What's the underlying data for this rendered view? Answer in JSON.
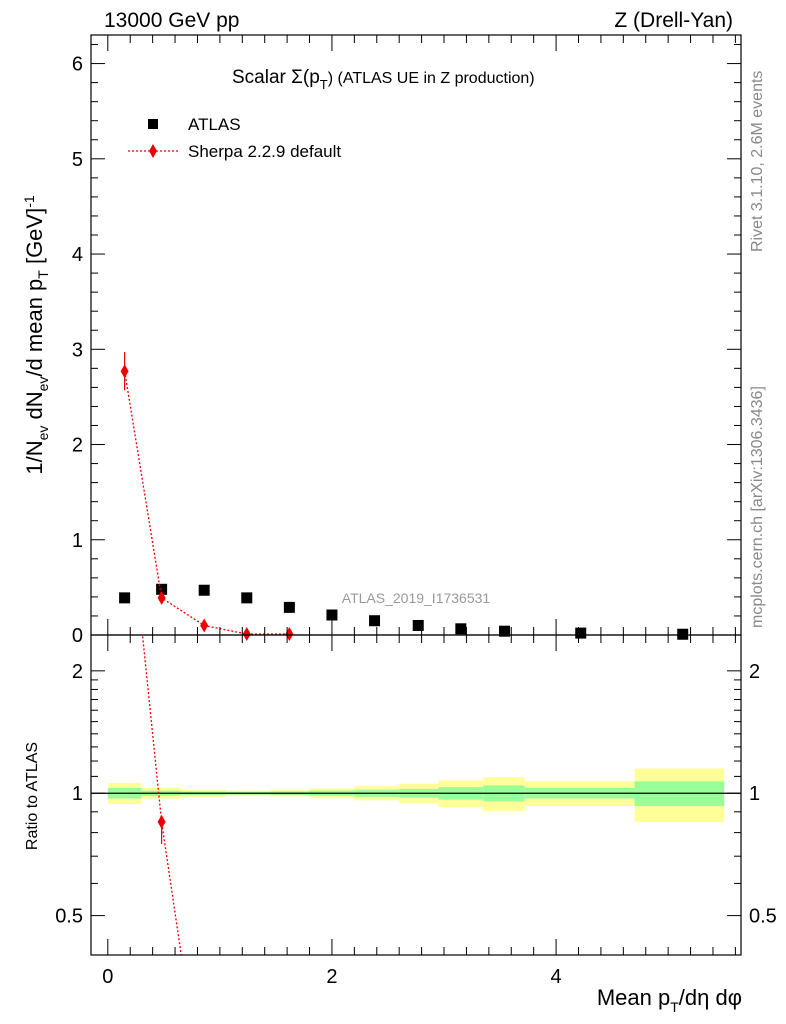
{
  "header": {
    "left": "13000 GeV pp",
    "right": "Z (Drell-Yan)"
  },
  "side": {
    "rivet": "Rivet 3.1.10,  2.6M events",
    "mcplots": "mcplots.cern.ch [arXiv:1306.3436]"
  },
  "chart_data": {
    "type": "scatter",
    "title": "Scalar Σ(p_T) (ATLAS UE in Z production)",
    "title_parts": {
      "main": "Scalar Σ(p",
      "sub": "T",
      "tail": ") (ATLAS UE in Z production)"
    },
    "analysis_label": "ATLAS_2019_I1736531",
    "xlabel": "Mean p_T/dη dφ",
    "xlabel_parts": {
      "main": "Mean p",
      "sub": "T",
      "tail": "/dη dφ"
    },
    "ylabel": "1/N_ev dN_ev/d mean p_T [GeV]^-1",
    "ylabel_parts": {
      "a": "1/N",
      "a_sub": "ev",
      "b": " dN",
      "b_sub": "ev",
      "c": "/d mean p",
      "c_sub": "T",
      "d": " [GeV]",
      "d_sup": "-1"
    },
    "xlim": [
      -0.15,
      5.65
    ],
    "ylim": [
      0,
      6.3
    ],
    "xticks": [
      0,
      2,
      4
    ],
    "xtick_labels": [
      "0",
      "2",
      "4"
    ],
    "yticks": [
      0,
      1,
      2,
      3,
      4,
      5,
      6
    ],
    "ytick_labels": [
      "0",
      "1",
      "2",
      "3",
      "4",
      "5",
      "6"
    ],
    "legend_position": "top-left",
    "series": [
      {
        "name": "ATLAS",
        "color": "#000000",
        "marker": "square",
        "x": [
          0.15,
          0.48,
          0.86,
          1.24,
          1.62,
          2.0,
          2.38,
          2.77,
          3.15,
          3.54,
          4.22,
          5.13
        ],
        "y": [
          0.39,
          0.48,
          0.47,
          0.39,
          0.29,
          0.21,
          0.15,
          0.1,
          0.065,
          0.04,
          0.02,
          0.008
        ]
      },
      {
        "name": "Sherpa 2.2.9 default",
        "color": "#ee0000",
        "marker": "diamond",
        "line": "dotted",
        "x": [
          0.15,
          0.48,
          0.86,
          1.24,
          1.62
        ],
        "y": [
          2.77,
          0.39,
          0.1,
          0.01,
          0.01
        ],
        "err": [
          0.2,
          0.0,
          0.0,
          0.0,
          0.0
        ]
      }
    ],
    "ratio": {
      "ylabel": "Ratio to ATLAS",
      "ylim": [
        0.4,
        2.45
      ],
      "log_scale": true,
      "yticks": [
        0.5,
        1,
        2
      ],
      "ytick_labels": [
        "0.5",
        "1",
        "2"
      ],
      "band_colors": {
        "stat": "#99ff99",
        "total": "#ffff99"
      },
      "bins": [
        {
          "lo": 0.0,
          "hi": 0.3,
          "stat": 0.03,
          "total": 0.06
        },
        {
          "lo": 0.3,
          "hi": 0.65,
          "stat": 0.015,
          "total": 0.03
        },
        {
          "lo": 0.65,
          "hi": 1.05,
          "stat": 0.01,
          "total": 0.02
        },
        {
          "lo": 1.05,
          "hi": 1.45,
          "stat": 0.008,
          "total": 0.015
        },
        {
          "lo": 1.45,
          "hi": 1.8,
          "stat": 0.01,
          "total": 0.018
        },
        {
          "lo": 1.8,
          "hi": 2.2,
          "stat": 0.015,
          "total": 0.028
        },
        {
          "lo": 2.2,
          "hi": 2.6,
          "stat": 0.02,
          "total": 0.04
        },
        {
          "lo": 2.6,
          "hi": 2.95,
          "stat": 0.025,
          "total": 0.055
        },
        {
          "lo": 2.95,
          "hi": 3.35,
          "stat": 0.035,
          "total": 0.075
        },
        {
          "lo": 3.35,
          "hi": 3.72,
          "stat": 0.045,
          "total": 0.095
        },
        {
          "lo": 3.72,
          "hi": 4.7,
          "stat": 0.03,
          "total": 0.07
        },
        {
          "lo": 4.7,
          "hi": 5.5,
          "stat": 0.07,
          "total": 0.15
        }
      ],
      "sherpa": {
        "x": 0.48,
        "y": 0.85,
        "err_lo": 0.1,
        "err_hi": 0.0
      },
      "sherpa_line": {
        "x": [
          0.3,
          0.48,
          0.68
        ],
        "y": [
          2.6,
          0.85,
          0.36
        ]
      }
    }
  }
}
